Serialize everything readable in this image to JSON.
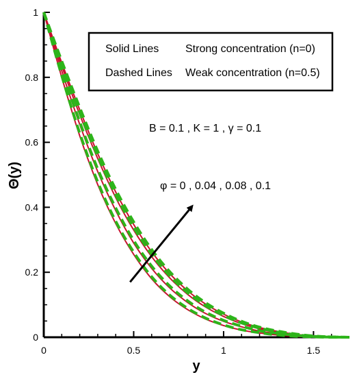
{
  "chart_data": {
    "type": "line",
    "title": "",
    "xlabel": "y",
    "ylabel": "Θ(y)",
    "xlim": [
      0,
      1.7
    ],
    "ylim": [
      0,
      1
    ],
    "xticks": [
      0,
      0.5,
      1,
      1.5
    ],
    "xtick_labels": [
      "0",
      "0.5",
      "1",
      "1.5"
    ],
    "yticks": [
      0,
      0.2,
      0.4,
      0.6,
      0.8,
      1
    ],
    "ytick_labels": [
      "0",
      "0.2",
      "0.4",
      "0.6",
      "0.8",
      "1"
    ],
    "legend": {
      "placement": "top-right",
      "rows": [
        {
          "style": "Solid Lines",
          "meaning": "Strong concentration (n=0)"
        },
        {
          "style": "Dashed Lines",
          "meaning": "Weak concentration (n=0.5)"
        }
      ]
    },
    "annotations": {
      "params": "B = 0.1 , K = 1 , γ = 0.1",
      "phi": "φ = 0 , 0.04 , 0.08 , 0.1",
      "arrow": "increasing φ",
      "arrow_from": [
        0.48,
        0.17
      ],
      "arrow_to": [
        0.82,
        0.4
      ]
    },
    "series": [
      {
        "phi": 0,
        "style": "solid",
        "x": [
          0,
          0.1,
          0.2,
          0.3,
          0.4,
          0.5,
          0.6,
          0.7,
          0.8,
          0.9,
          1.0,
          1.1,
          1.2,
          1.3,
          1.4,
          1.5,
          1.6,
          1.7
        ],
        "y": [
          1.0,
          0.8,
          0.62,
          0.47,
          0.35,
          0.255,
          0.18,
          0.125,
          0.085,
          0.056,
          0.036,
          0.022,
          0.013,
          0.007,
          0.003,
          0.001,
          0.0,
          0.0
        ]
      },
      {
        "phi": 0.04,
        "style": "solid",
        "x": [
          0,
          0.1,
          0.2,
          0.3,
          0.4,
          0.5,
          0.6,
          0.7,
          0.8,
          0.9,
          1.0,
          1.1,
          1.2,
          1.3,
          1.4,
          1.5,
          1.6,
          1.7
        ],
        "y": [
          1.0,
          0.82,
          0.655,
          0.51,
          0.39,
          0.29,
          0.212,
          0.152,
          0.107,
          0.073,
          0.049,
          0.032,
          0.019,
          0.011,
          0.005,
          0.002,
          0.0005,
          0.0
        ]
      },
      {
        "phi": 0.08,
        "style": "solid",
        "x": [
          0,
          0.1,
          0.2,
          0.3,
          0.4,
          0.5,
          0.6,
          0.7,
          0.8,
          0.9,
          1.0,
          1.1,
          1.2,
          1.3,
          1.4,
          1.5,
          1.6,
          1.7
        ],
        "y": [
          1.0,
          0.835,
          0.685,
          0.55,
          0.43,
          0.33,
          0.248,
          0.183,
          0.132,
          0.093,
          0.064,
          0.042,
          0.026,
          0.015,
          0.008,
          0.003,
          0.001,
          0.0
        ]
      },
      {
        "phi": 0.1,
        "style": "solid",
        "x": [
          0,
          0.1,
          0.2,
          0.3,
          0.4,
          0.5,
          0.6,
          0.7,
          0.8,
          0.9,
          1.0,
          1.1,
          1.2,
          1.3,
          1.4,
          1.5,
          1.6,
          1.7
        ],
        "y": [
          1.0,
          0.845,
          0.7,
          0.565,
          0.447,
          0.347,
          0.263,
          0.196,
          0.143,
          0.102,
          0.071,
          0.047,
          0.03,
          0.018,
          0.009,
          0.004,
          0.001,
          0.0
        ]
      },
      {
        "phi": 0,
        "style": "dashed",
        "x": [
          0,
          0.1,
          0.2,
          0.3,
          0.4,
          0.5,
          0.6,
          0.7,
          0.8,
          0.9,
          1.0,
          1.1,
          1.2,
          1.3,
          1.4,
          1.5,
          1.6,
          1.7
        ],
        "y": [
          1.0,
          0.805,
          0.628,
          0.478,
          0.357,
          0.262,
          0.186,
          0.13,
          0.089,
          0.059,
          0.038,
          0.023,
          0.014,
          0.007,
          0.003,
          0.001,
          0.0,
          0.0
        ]
      },
      {
        "phi": 0.04,
        "style": "dashed",
        "x": [
          0,
          0.1,
          0.2,
          0.3,
          0.4,
          0.5,
          0.6,
          0.7,
          0.8,
          0.9,
          1.0,
          1.1,
          1.2,
          1.3,
          1.4,
          1.5,
          1.6,
          1.7
        ],
        "y": [
          1.0,
          0.825,
          0.663,
          0.518,
          0.398,
          0.298,
          0.219,
          0.158,
          0.112,
          0.077,
          0.052,
          0.034,
          0.02,
          0.012,
          0.006,
          0.002,
          0.0005,
          0.0
        ]
      },
      {
        "phi": 0.08,
        "style": "dashed",
        "x": [
          0,
          0.1,
          0.2,
          0.3,
          0.4,
          0.5,
          0.6,
          0.7,
          0.8,
          0.9,
          1.0,
          1.1,
          1.2,
          1.3,
          1.4,
          1.5,
          1.6,
          1.7
        ],
        "y": [
          1.0,
          0.84,
          0.692,
          0.558,
          0.438,
          0.338,
          0.255,
          0.189,
          0.137,
          0.097,
          0.067,
          0.044,
          0.028,
          0.016,
          0.008,
          0.003,
          0.001,
          0.0
        ]
      },
      {
        "phi": 0.1,
        "style": "dashed",
        "x": [
          0,
          0.1,
          0.2,
          0.3,
          0.4,
          0.5,
          0.6,
          0.7,
          0.8,
          0.9,
          1.0,
          1.1,
          1.2,
          1.3,
          1.4,
          1.5,
          1.6,
          1.7
        ],
        "y": [
          1.0,
          0.85,
          0.707,
          0.573,
          0.455,
          0.355,
          0.27,
          0.202,
          0.148,
          0.106,
          0.074,
          0.049,
          0.031,
          0.019,
          0.01,
          0.004,
          0.001,
          0.0
        ]
      }
    ]
  },
  "colors": {
    "solid": "#c8102e",
    "dashed": "#2db41a",
    "axis": "#000000",
    "background": "#ffffff"
  }
}
